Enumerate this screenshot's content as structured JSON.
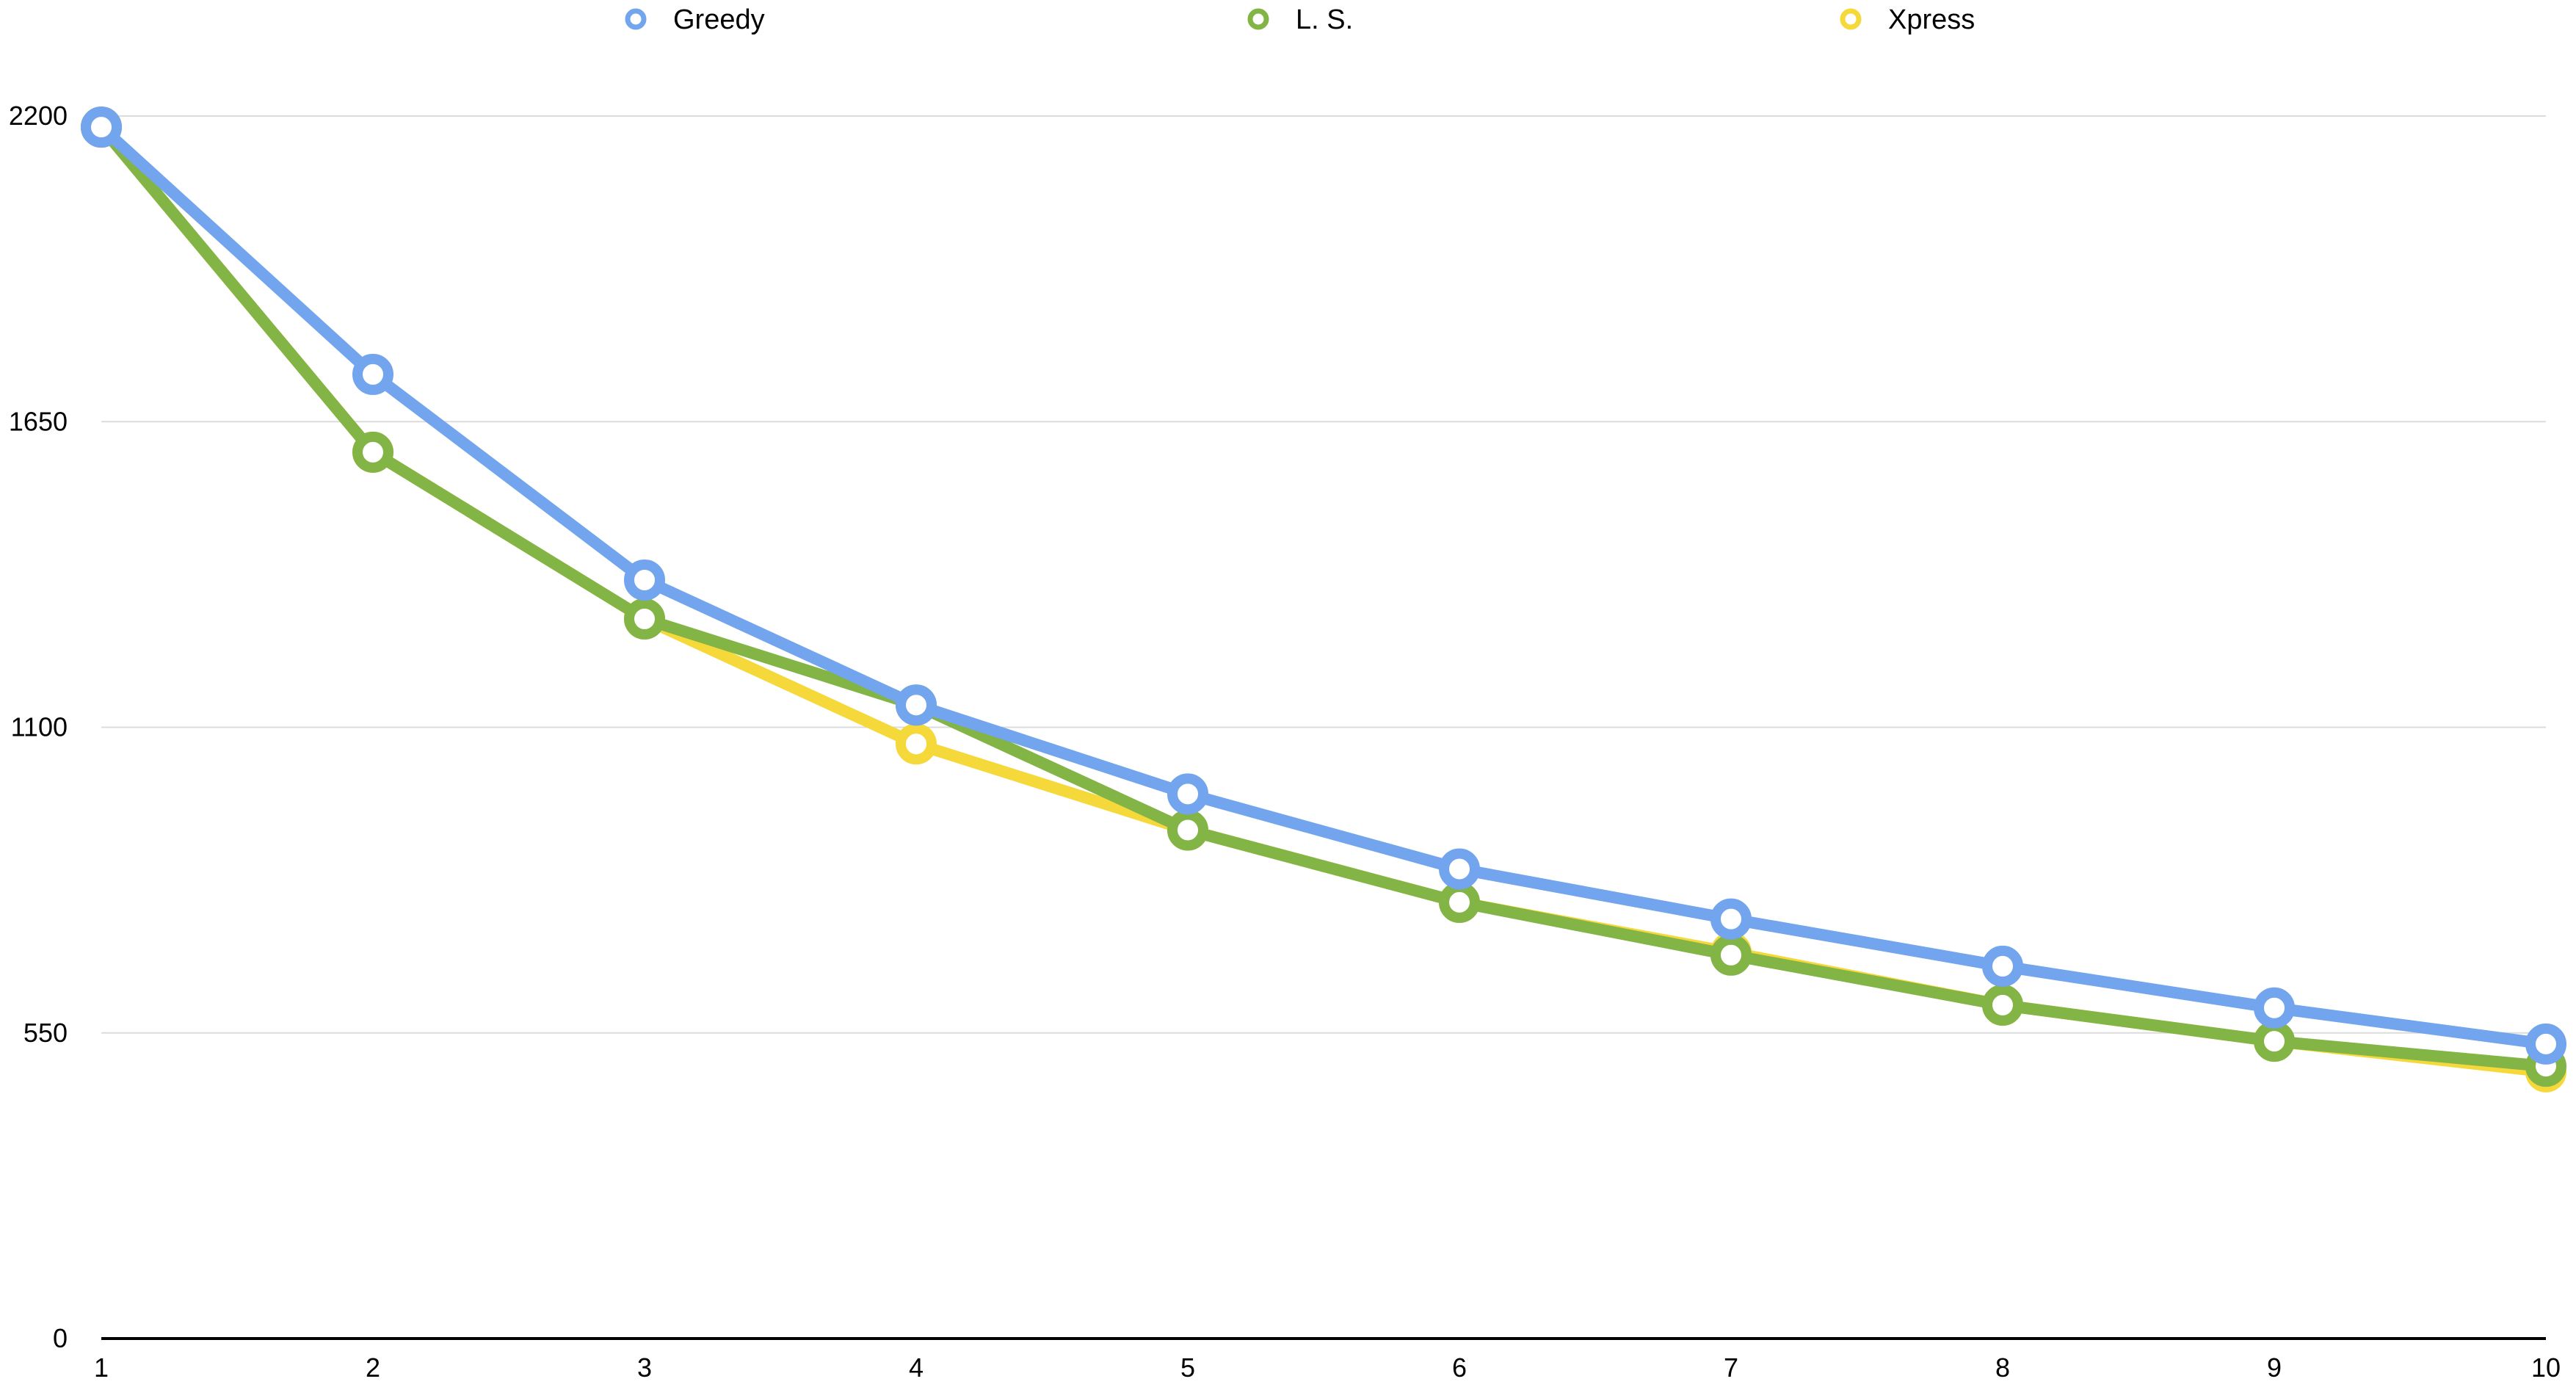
{
  "chart_data": {
    "type": "line",
    "title": "",
    "xlabel": "",
    "ylabel": "",
    "x": [
      1,
      2,
      3,
      4,
      5,
      6,
      7,
      8,
      9,
      10
    ],
    "x_tick_labels": [
      "1",
      "2",
      "3",
      "4",
      "5",
      "6",
      "7",
      "8",
      "9",
      "10"
    ],
    "y_ticks": [
      0,
      550,
      1100,
      1650,
      2200
    ],
    "y_tick_labels": [
      "0",
      "550",
      "1100",
      "1650",
      "2200"
    ],
    "ylim": [
      0,
      2200
    ],
    "grid": "horizontal",
    "legend_position": "top",
    "series": [
      {
        "name": "Greedy",
        "color": "#72a5ee",
        "values": [
          2180,
          1735,
          1365,
          1140,
          980,
          845,
          755,
          670,
          595,
          530
        ]
      },
      {
        "name": "L. S.",
        "color": "#82b446",
        "values": [
          2180,
          1595,
          1295,
          1140,
          915,
          785,
          690,
          600,
          535,
          490
        ]
      },
      {
        "name": "Xpress",
        "color": "#f5d83a",
        "values": [
          2180,
          1595,
          1295,
          1070,
          915,
          785,
          695,
          600,
          535,
          480
        ]
      }
    ]
  }
}
